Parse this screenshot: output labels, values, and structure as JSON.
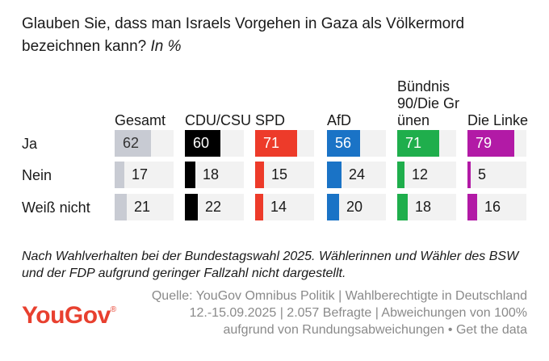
{
  "title": "Glauben Sie, dass man Israels Vorgehen in Gaza als Völkermord bezeichnen kann?",
  "subtitle": "In %",
  "chart_data": {
    "type": "table",
    "title": "Glauben Sie, dass man Israels Vorgehen in Gaza als Völkermord bezeichnen kann? In %",
    "columns": [
      {
        "label": "Gesamt",
        "color": "#c8cbd3",
        "text_on_ja": "#333333"
      },
      {
        "label": "CDU/CSU",
        "color": "#000000",
        "text_on_ja": "#ffffff"
      },
      {
        "label": "SPD",
        "color": "#ed3b2a",
        "text_on_ja": "#ffffff"
      },
      {
        "label": "AfD",
        "color": "#1a73c6",
        "text_on_ja": "#ffffff"
      },
      {
        "label": "Bündnis 90/Die Grünen",
        "color": "#1fae4c",
        "text_on_ja": "#ffffff"
      },
      {
        "label": "Die Linke",
        "color": "#b21aa6",
        "text_on_ja": "#ffffff"
      }
    ],
    "rows": [
      {
        "label": "Ja",
        "values": [
          62,
          60,
          71,
          56,
          71,
          79
        ]
      },
      {
        "label": "Nein",
        "values": [
          17,
          18,
          15,
          24,
          12,
          5
        ]
      },
      {
        "label": "Weiß nicht",
        "values": [
          21,
          22,
          14,
          20,
          18,
          16
        ]
      }
    ]
  },
  "footnote": "Nach Wahlverhalten bei der Bundestagswahl 2025. Wählerinnen und Wähler des BSW und der FDP aufgrund geringer Fallzahl nicht dargestellt.",
  "source": {
    "text": "Quelle: YouGov Omnibus Politik | Wahlberechtigte in Deutschland 12.-15.09.2025 | 2.057 Befragte | Abweichungen von 100% aufgrund von Rundungsabweichungen •",
    "link": "Get the data"
  },
  "logo": {
    "text": "YouGov",
    "mark": "®"
  }
}
